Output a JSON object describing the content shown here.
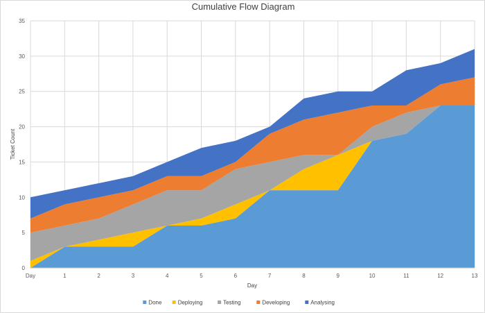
{
  "chart_data": {
    "type": "area",
    "stacked": true,
    "title": "Cumulative Flow Diagram",
    "xlabel": "Day",
    "ylabel": "Ticket Count",
    "categories": [
      "Day",
      "1",
      "2",
      "3",
      "4",
      "5",
      "6",
      "7",
      "8",
      "9",
      "10",
      "11",
      "12",
      "13"
    ],
    "ylim": [
      0,
      35
    ],
    "yticks": [
      "0",
      "5",
      "10",
      "15",
      "20",
      "25",
      "30",
      "35"
    ],
    "grid": true,
    "legend_position": "bottom",
    "series": [
      {
        "name": "Done",
        "color": "#5b9bd5",
        "values": [
          0,
          3,
          3,
          3,
          6,
          6,
          7,
          11,
          11,
          11,
          18,
          19,
          23,
          23
        ]
      },
      {
        "name": "Deploying",
        "color": "#ffc000",
        "values": [
          1,
          0,
          1,
          2,
          0,
          1,
          2,
          0,
          3,
          5,
          0,
          0,
          0,
          0
        ]
      },
      {
        "name": "Testing",
        "color": "#a5a5a5",
        "values": [
          4,
          3,
          3,
          4,
          5,
          4,
          5,
          4,
          2,
          0,
          2,
          3,
          0,
          0
        ]
      },
      {
        "name": "Developing",
        "color": "#ed7d31",
        "values": [
          2,
          3,
          3,
          2,
          2,
          2,
          1,
          4,
          5,
          6,
          3,
          1,
          3,
          4
        ]
      },
      {
        "name": "Analysing",
        "color": "#4472c4",
        "values": [
          3,
          2,
          2,
          2,
          2,
          4,
          3,
          1,
          3,
          3,
          2,
          5,
          3,
          4
        ]
      }
    ]
  }
}
